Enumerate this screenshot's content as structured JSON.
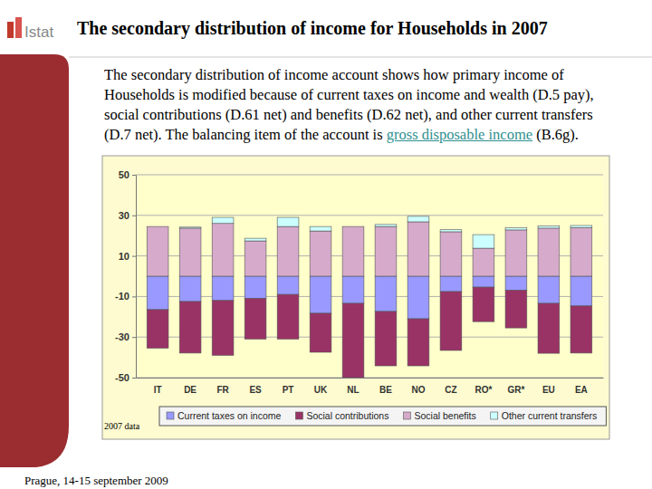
{
  "header": {
    "logo": "Istat",
    "title": "The secondary distribution of income for Households in 2007"
  },
  "paragraph": {
    "text": "The secondary distribution of income account shows how primary income of Households is modified because of current taxes on income and wealth (D.5 pay), social contributions (D.61 net) and benefits (D.62 net), and other current transfers (D.7 net). The balancing item of the account is ",
    "link": "gross disposable income",
    "after": " (B.6g)."
  },
  "chart_data": {
    "type": "bar",
    "stacked": true,
    "grid": true,
    "legend": "bottom",
    "annotation": "2007 data",
    "categories": [
      "IT",
      "DE",
      "FR",
      "ES",
      "PT",
      "UK",
      "NL",
      "BE",
      "NO",
      "CZ",
      "RO*",
      "GR*",
      "EU",
      "EA"
    ],
    "series": [
      {
        "name": "Current taxes on income",
        "color": "#9999ff",
        "values": [
          -16.5,
          -12.5,
          -12,
          -11,
          -9,
          -18.3,
          -13.4,
          -17.4,
          -21,
          -7.6,
          -5.4,
          -7,
          -13.4,
          -14.7
        ]
      },
      {
        "name": "Social contributions",
        "color": "#993366",
        "values": [
          -19,
          -25.4,
          -27,
          -20,
          -22,
          -19.2,
          -36.6,
          -26.8,
          -23.2,
          -29,
          -17,
          -18.5,
          -24.6,
          -23.2
        ]
      },
      {
        "name": "Social benefits",
        "color": "#d6aacb",
        "values": [
          24.5,
          23.7,
          26,
          17.4,
          24.5,
          22.3,
          24.5,
          24.5,
          26.8,
          21.9,
          13.8,
          22.8,
          23.7,
          24
        ]
      },
      {
        "name": "Other current transfers",
        "color": "#ccffff",
        "values": [
          0,
          0.5,
          3,
          1.3,
          4.5,
          2.2,
          0,
          1,
          2.7,
          1,
          6.7,
          1,
          1,
          1
        ]
      }
    ],
    "ylim": [
      -50,
      50
    ],
    "yticks": [
      -50,
      -30,
      -10,
      10,
      30,
      50
    ]
  },
  "footer": "Prague, 14-15 september 2009"
}
